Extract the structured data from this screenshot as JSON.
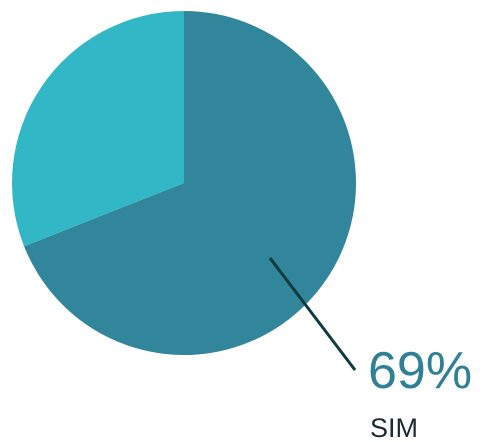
{
  "chart_data": {
    "type": "pie",
    "categories": [
      "SIM",
      null
    ],
    "values": [
      69,
      31
    ],
    "value_labels": [
      "69%",
      null
    ],
    "colors": [
      "#32869b",
      "#31b7c5"
    ]
  }
}
